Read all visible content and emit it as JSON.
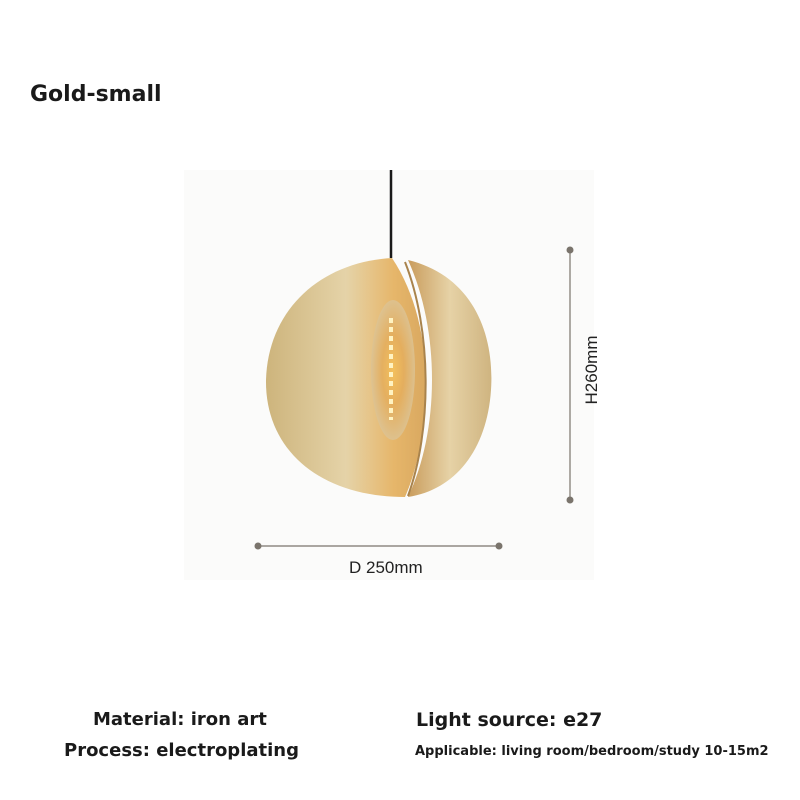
{
  "title": "Gold-small",
  "dimensions": {
    "diameter": "D 250mm",
    "height": "H260mm"
  },
  "specs": {
    "material": "Material: iron art",
    "process": "Process: electroplating",
    "light_source": "Light source: e27",
    "applicable": "Applicable: living room/bedroom/study 10-15m2"
  },
  "colors": {
    "lamp": "#d9c08a",
    "glow": "#f0b548",
    "cord": "#1a1a1a",
    "dimension_line": "#7a746c"
  }
}
